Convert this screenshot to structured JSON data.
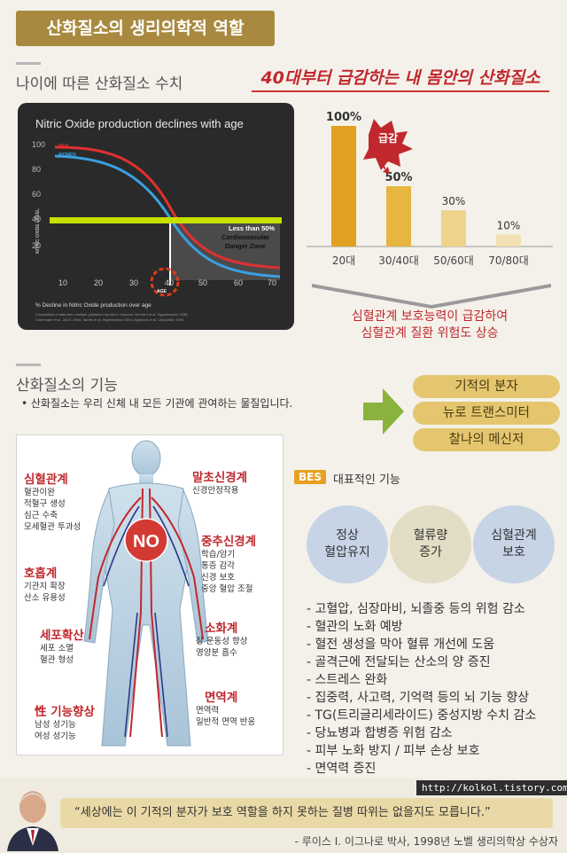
{
  "header": {
    "title": "산화질소의 생리의학적 역할"
  },
  "section_age": {
    "title": "나이에 따른 산화질소 수치",
    "headline": "40대부터 급감하는 내 몸안의 산화질소"
  },
  "line_chart": {
    "title": "Nitric Oxide production declines with age",
    "legend_men": "MEN",
    "legend_women": "WOMEN",
    "ylabel": "NITRIC OXIDE LEVEL",
    "yticks": [
      "100",
      "80",
      "60",
      "40",
      "20"
    ],
    "xticks": [
      "10",
      "20",
      "30",
      "40",
      "50",
      "60",
      "70"
    ],
    "xlabel": "AGE",
    "danger_line1": "Less than 50%",
    "danger_line2": "Cardiovascular",
    "danger_line3": "Danger Zone",
    "footnote": "% Decline in Nitric Oxide production over age",
    "source1": "Compilation of data from multiple published reports in humans: Gerhard et al. Hypertension 1996;",
    "source2": "Celermajer et al. JACC 1994; Taddei et al. Hypertension 2001; Egashira et al. Circulation 1993",
    "colors": {
      "men": "#e03030",
      "women": "#3aa0e0",
      "threshold": "#c8e000"
    }
  },
  "chart_data": {
    "type": "bar",
    "categories": [
      "20대",
      "30/40대",
      "50/60대",
      "70/80대"
    ],
    "values": [
      100,
      50,
      30,
      10
    ],
    "value_labels": [
      "100%",
      "50%",
      "30%",
      "10%"
    ],
    "callout": "급감",
    "ylim": [
      0,
      100
    ],
    "colors": [
      "#e0a020",
      "#e6b640",
      "#efd38a",
      "#f2e0b4"
    ]
  },
  "age_message": {
    "line1": "심혈관계 보호능력이 급감하여",
    "line2": "심혈관계 질환 위험도 상승"
  },
  "section_function": {
    "title": "산화질소의 기능",
    "desc": "• 산화질소는 우리 신체 내 모든 기관에 관여하는 물질입니다."
  },
  "pills": [
    "기적의 분자",
    "뉴로 트랜스미터",
    "찰나의 메신저"
  ],
  "body": {
    "center": "NO",
    "cardio": {
      "head": "심혈관계",
      "text": "혈관이완\n적혈구 생성\n심근 수축\n모세혈관 투과성"
    },
    "resp": {
      "head": "호흡계",
      "text": "기관지 확장\n산소 유용성"
    },
    "cell": {
      "head": "세포확산",
      "text": "세포 소멸\n혈관 형성"
    },
    "sex": {
      "head": "性 기능향상",
      "text": "남성 성기능\n여성 성기능"
    },
    "peripheral": {
      "head": "말초신경계",
      "text": "신경안정작용"
    },
    "central": {
      "head": "중추신경계",
      "text": "학습/암기\n통증 감각\n신경 보호\n중앙 혈압 조절"
    },
    "digest": {
      "head": "소화계",
      "text": "장 운동성 향상\n영양분 흡수"
    },
    "immune": {
      "head": "면역계",
      "text": "면역력\n일반적 면역 반응"
    }
  },
  "bes": {
    "tag": "BES",
    "label": "대표적인 기능"
  },
  "circles": [
    {
      "text": "정상\n혈압유지",
      "color": "#c6d4e6"
    },
    {
      "text": "혈류량\n증가",
      "color": "#e2ddc4"
    },
    {
      "text": "심혈관계\n보호",
      "color": "#c6d4e6"
    }
  ],
  "effects": [
    "- 고혈압, 심장마비, 뇌졸중 등의 위험 감소",
    "- 혈관의 노화 예방",
    "- 혈전 생성을 막아 혈류 개선에 도움",
    "- 골격근에 전달되는 산소의 양 증진",
    "- 스트레스 완화",
    "- 집중력, 사고력, 기억력 등의 뇌 기능 향상",
    "- TG(트리글리세라이드) 중성지방 수치 감소",
    "- 당뇨병과 합병증 위험 감소",
    "- 피부 노화 방지 / 피부 손상 보호",
    "- 면역력 증진"
  ],
  "footer": {
    "url": "http://kolkol.tistory.com",
    "quote": "“세상에는 이 기적의 분자가 보호 역할을 하지 못하는 질병 따위는 없을지도 모릅니다.”",
    "source": "- 루이스 I. 이그나로 박사, 1998년 노벨 생리의학상 수상자"
  }
}
